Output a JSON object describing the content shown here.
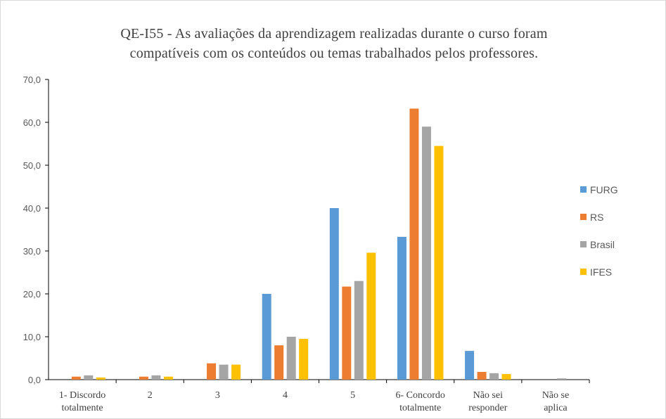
{
  "chart_data": {
    "type": "bar",
    "title_lines": [
      "QE-I55 - As avaliações da aprendizagem realizadas durante o curso foram",
      "compatíveis com os conteúdos ou temas trabalhados pelos professores."
    ],
    "categories": [
      [
        "1- Discordo",
        "totalmente"
      ],
      [
        "2"
      ],
      [
        "3"
      ],
      [
        "4"
      ],
      [
        "5"
      ],
      [
        "6- Concordo",
        "totalmente"
      ],
      [
        "Não sei",
        "responder"
      ],
      [
        "Não se",
        "aplica"
      ]
    ],
    "series": [
      {
        "name": "FURG",
        "color": "#5b9bd5",
        "values": [
          0,
          0,
          0,
          20.0,
          40.0,
          33.3,
          6.7,
          0
        ]
      },
      {
        "name": "RS",
        "color": "#ed7d31",
        "values": [
          0.7,
          0.7,
          3.8,
          8.0,
          21.7,
          63.2,
          1.8,
          0
        ]
      },
      {
        "name": "Brasil",
        "color": "#a5a5a5",
        "values": [
          1.0,
          1.0,
          3.5,
          10.0,
          23.0,
          59.0,
          1.5,
          0.3
        ]
      },
      {
        "name": "IFES",
        "color": "#ffc000",
        "values": [
          0.5,
          0.7,
          3.5,
          9.5,
          29.6,
          54.5,
          1.3,
          0
        ]
      }
    ],
    "ylim": [
      0,
      70
    ],
    "yticks": [
      "0,0",
      "10,0",
      "20,0",
      "30,0",
      "40,0",
      "50,0",
      "60,0",
      "70,0"
    ],
    "grid": false,
    "legend_position": "right"
  }
}
